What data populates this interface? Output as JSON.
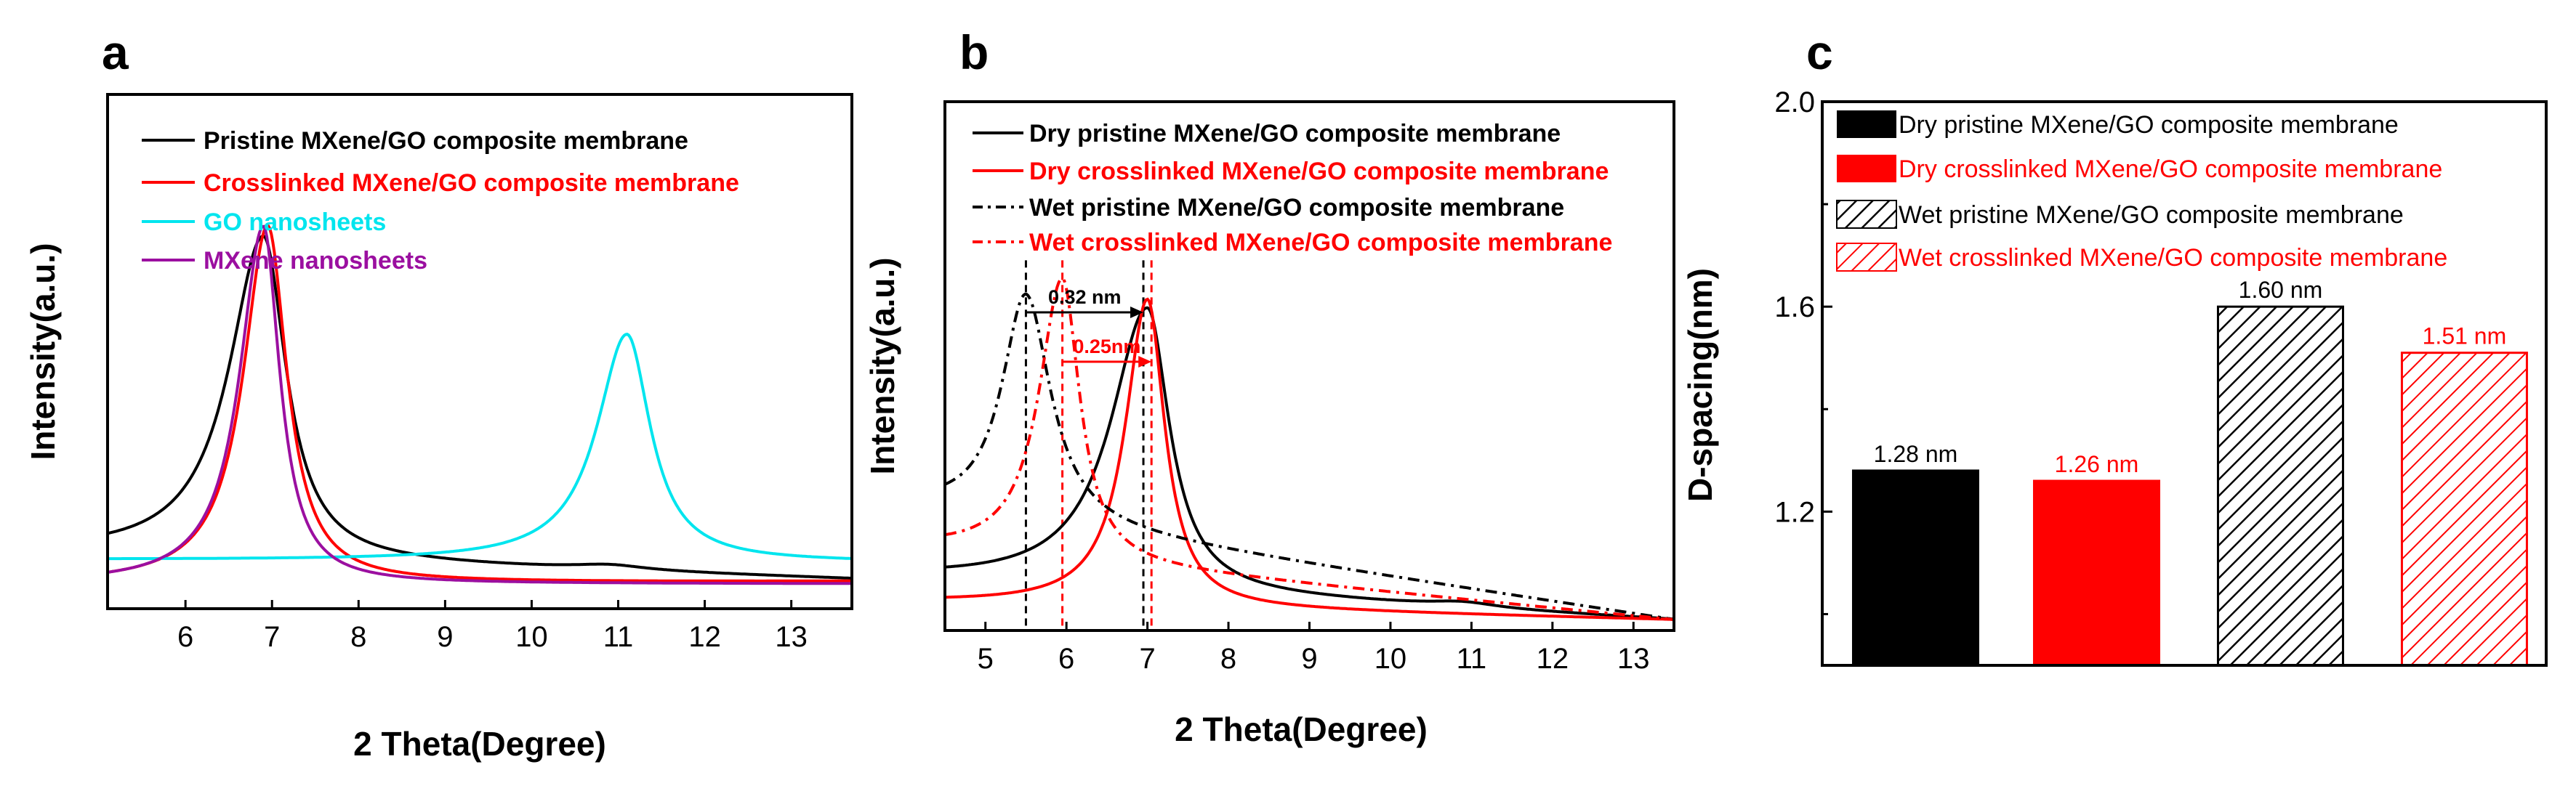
{
  "chart_data": [
    {
      "panel": "a",
      "type": "line",
      "xlabel": "2 Theta(Degree)",
      "ylabel": "Intensity(a.u.)",
      "xlim": [
        5.1,
        13.7
      ],
      "xticks": [
        6,
        7,
        8,
        9,
        10,
        11,
        12,
        13
      ],
      "legend_position": "top-left",
      "series": [
        {
          "name": "Pristine MXene/GO composite membrane",
          "color": "#000000",
          "dash": "solid",
          "base": 0.09,
          "tail_x": 13.7,
          "tail_y": 0.04,
          "peaks": [
            {
              "x": 6.9,
              "h": 0.67,
              "wl": 0.48,
              "wr": 0.32
            },
            {
              "x": 10.9,
              "h": 0.01,
              "wl": 0.5,
              "wr": 0.5
            }
          ]
        },
        {
          "name": "Crosslinked MXene/GO composite membrane",
          "color": "#ff0000",
          "dash": "solid",
          "base": 0.03,
          "tail_x": 13.7,
          "tail_y": 0.035,
          "peaks": [
            {
              "x": 6.95,
              "h": 0.74,
              "wl": 0.34,
              "wr": 0.27
            }
          ]
        },
        {
          "name": "GO nanosheets",
          "color": "#00e5ee",
          "dash": "solid",
          "base": 0.08,
          "tail_x": 13.7,
          "tail_y": 0.075,
          "peaks": [
            {
              "x": 11.1,
              "h": 0.47,
              "wl": 0.42,
              "wr": 0.33
            }
          ]
        },
        {
          "name": "MXene nanosheets",
          "color": "#9b0fa0",
          "dash": "solid",
          "base": 0.03,
          "tail_x": 13.7,
          "tail_y": 0.03,
          "peaks": [
            {
              "x": 6.9,
              "h": 0.74,
              "wl": 0.33,
              "wr": 0.23
            }
          ]
        }
      ]
    },
    {
      "panel": "b",
      "type": "line",
      "xlabel": "2 Theta(Degree)",
      "ylabel": "Intensity(a.u.)",
      "xlim": [
        4.5,
        13.5
      ],
      "xticks": [
        5,
        6,
        7,
        8,
        9,
        10,
        11,
        12,
        13
      ],
      "legend_position": "top",
      "series": [
        {
          "name": "Dry pristine MXene/GO composite membrane",
          "color": "#000000",
          "dash": "solid",
          "base": 0.08,
          "tail_x": 13.5,
          "tail_y": 0.0,
          "peaks": [
            {
              "x": 7.0,
              "h": 0.57,
              "wl": 0.55,
              "wr": 0.33
            },
            {
              "x": 10.9,
              "h": 0.01,
              "wl": 0.5,
              "wr": 0.5
            }
          ]
        },
        {
          "name": "Dry crosslinked MXene/GO composite membrane",
          "color": "#ff0000",
          "dash": "solid",
          "base": 0.035,
          "tail_x": 13.5,
          "tail_y": 0.0,
          "peaks": [
            {
              "x": 7.0,
              "h": 0.62,
              "wl": 0.33,
              "wr": 0.26
            }
          ]
        },
        {
          "name": "Wet pristine MXene/GO composite membrane",
          "color": "#000000",
          "dash": "dashdot",
          "base": 0.22,
          "tail_x": 13.5,
          "tail_y": 0.0,
          "peaks": [
            {
              "x": 5.5,
              "h": 0.46,
              "wl": 0.36,
              "wr": 0.37
            }
          ]
        },
        {
          "name": "Wet crosslinked MXene/GO composite membrane",
          "color": "#ff0000",
          "dash": "dashdot",
          "base": 0.14,
          "tail_x": 13.5,
          "tail_y": 0.0,
          "peaks": [
            {
              "x": 5.95,
              "h": 0.57,
              "wl": 0.35,
              "wr": 0.26
            }
          ]
        }
      ],
      "vlines": [
        {
          "x": 5.5,
          "color": "#000000"
        },
        {
          "x": 5.95,
          "color": "#ff0000"
        },
        {
          "x": 6.95,
          "color": "#000000"
        },
        {
          "x": 7.05,
          "color": "#ff0000"
        }
      ],
      "annotations": [
        {
          "text": "0.32 nm",
          "color": "#000000",
          "from": 5.5,
          "to": 6.95
        },
        {
          "text": "0.25nm",
          "color": "#ff0000",
          "from": 5.95,
          "to": 7.05
        }
      ]
    },
    {
      "panel": "c",
      "type": "bar",
      "ylabel": "D-spacing(nm)",
      "ylim": [
        0.9,
        2.0
      ],
      "yticks": [
        "1.2",
        "1.6",
        "2.0"
      ],
      "legend_position": "top",
      "categories": [
        "Dry pristine MXene/GO composite membrane",
        "Dry crosslinked MXene/GO composite membrane",
        "Wet pristine MXene/GO composite membrane",
        "Wet crosslinked MXene/GO composite membrane"
      ],
      "values": [
        1.28,
        1.26,
        1.6,
        1.51
      ],
      "value_labels": [
        "1.28 nm",
        "1.26 nm",
        "1.60 nm",
        "1.51 nm"
      ],
      "colors": [
        "#000000",
        "#ff0000",
        "#000000",
        "#ff0000"
      ],
      "hatched": [
        false,
        false,
        true,
        true
      ]
    }
  ],
  "panel_letters": [
    "a",
    "b",
    "c"
  ]
}
